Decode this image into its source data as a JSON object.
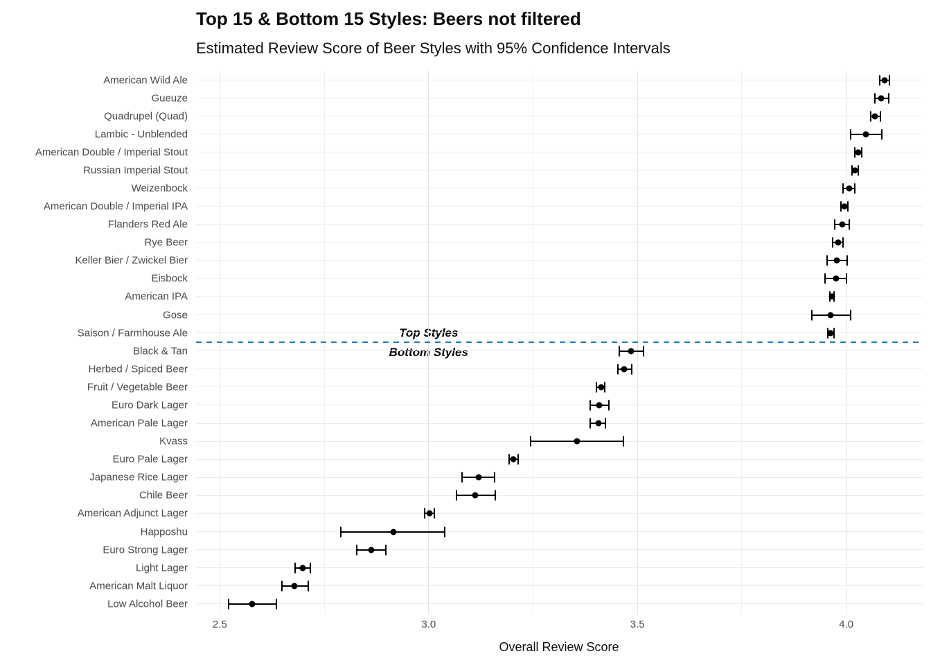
{
  "title": "Top 15 & Bottom 15 Styles: Beers not filtered",
  "subtitle": "Estimated Review Score of Beer Styles with 95% Confidence Intervals",
  "annotations": {
    "above_line": "Top Styles",
    "below_line": "Bottom Styles"
  },
  "colors": {
    "divider_line": "#1f78b4",
    "point": "#000000",
    "grid_major": "#e4e4e4",
    "grid_minor": "#f1f1f1",
    "grid_row": "#ebebeb",
    "tick_text": "#4a4a4a"
  },
  "chart_data": {
    "type": "scatter",
    "subtype": "dot-plot-with-95ci-error-bars",
    "title": "Top 15 & Bottom 15 Styles: Beers not filtered",
    "subtitle": "Estimated Review Score of Beer Styles with 95% Confidence Intervals",
    "xlabel": "Overall Review Score",
    "ylabel": "",
    "xlim": [
      2.443,
      4.183
    ],
    "x_major_ticks": [
      2.5,
      3.0,
      3.5,
      4.0
    ],
    "x_tick_labels": [
      "2.5",
      "3.0",
      "3.5",
      "4.0"
    ],
    "x_minor_ticks": [
      2.75,
      3.25,
      3.75
    ],
    "grid": true,
    "legend": false,
    "divider_between_rows": [
      15,
      16
    ],
    "rows": [
      {
        "label": "American Wild Ale",
        "estimate": 4.092,
        "ci_low": 4.08,
        "ci_high": 4.103
      },
      {
        "label": "Gueuze",
        "estimate": 4.084,
        "ci_low": 4.069,
        "ci_high": 4.101
      },
      {
        "label": "Quadrupel (Quad)",
        "estimate": 4.069,
        "ci_low": 4.058,
        "ci_high": 4.081
      },
      {
        "label": "Lambic - Unblended",
        "estimate": 4.047,
        "ci_low": 4.01,
        "ci_high": 4.085
      },
      {
        "label": "American Double / Imperial Stout",
        "estimate": 4.029,
        "ci_low": 4.021,
        "ci_high": 4.037
      },
      {
        "label": "Russian Imperial Stout",
        "estimate": 4.021,
        "ci_low": 4.013,
        "ci_high": 4.029
      },
      {
        "label": "Weizenbock",
        "estimate": 4.007,
        "ci_low": 3.993,
        "ci_high": 4.021
      },
      {
        "label": "American Double / Imperial IPA",
        "estimate": 3.996,
        "ci_low": 3.988,
        "ci_high": 4.004
      },
      {
        "label": "Flanders Red Ale",
        "estimate": 3.991,
        "ci_low": 3.972,
        "ci_high": 4.007
      },
      {
        "label": "Rye Beer",
        "estimate": 3.981,
        "ci_low": 3.967,
        "ci_high": 3.993
      },
      {
        "label": "Keller Bier / Zwickel Bier",
        "estimate": 3.978,
        "ci_low": 3.954,
        "ci_high": 4.003
      },
      {
        "label": "Eisbock",
        "estimate": 3.976,
        "ci_low": 3.949,
        "ci_high": 4.0
      },
      {
        "label": "American IPA",
        "estimate": 3.965,
        "ci_low": 3.96,
        "ci_high": 3.971
      },
      {
        "label": "Gose",
        "estimate": 3.962,
        "ci_low": 3.918,
        "ci_high": 4.01
      },
      {
        "label": "Saison / Farmhouse Ale",
        "estimate": 3.963,
        "ci_low": 3.956,
        "ci_high": 3.971
      },
      {
        "label": "Black & Tan",
        "estimate": 3.485,
        "ci_low": 3.456,
        "ci_high": 3.514
      },
      {
        "label": "Herbed / Spiced Beer",
        "estimate": 3.468,
        "ci_low": 3.453,
        "ci_high": 3.486
      },
      {
        "label": "Fruit / Vegetable Beer",
        "estimate": 3.413,
        "ci_low": 3.401,
        "ci_high": 3.422
      },
      {
        "label": "Euro Dark Lager",
        "estimate": 3.409,
        "ci_low": 3.387,
        "ci_high": 3.432
      },
      {
        "label": "American Pale Lager",
        "estimate": 3.406,
        "ci_low": 3.387,
        "ci_high": 3.424
      },
      {
        "label": "Kvass",
        "estimate": 3.355,
        "ci_low": 3.244,
        "ci_high": 3.466
      },
      {
        "label": "Euro Pale Lager",
        "estimate": 3.203,
        "ci_low": 3.192,
        "ci_high": 3.214
      },
      {
        "label": "Japanese Rice Lager",
        "estimate": 3.12,
        "ci_low": 3.08,
        "ci_high": 3.158
      },
      {
        "label": "Chile Beer",
        "estimate": 3.112,
        "ci_low": 3.066,
        "ci_high": 3.159
      },
      {
        "label": "American Adjunct Lager",
        "estimate": 3.002,
        "ci_low": 2.991,
        "ci_high": 3.013
      },
      {
        "label": "Happoshu",
        "estimate": 2.915,
        "ci_low": 2.79,
        "ci_high": 3.039
      },
      {
        "label": "Euro Strong Lager",
        "estimate": 2.862,
        "ci_low": 2.828,
        "ci_high": 2.897
      },
      {
        "label": "Light Lager",
        "estimate": 2.699,
        "ci_low": 2.681,
        "ci_high": 2.717
      },
      {
        "label": "American Malt Liquor",
        "estimate": 2.679,
        "ci_low": 2.648,
        "ci_high": 2.711
      },
      {
        "label": "Low Alcohol Beer",
        "estimate": 2.578,
        "ci_low": 2.521,
        "ci_high": 2.636
      }
    ]
  }
}
